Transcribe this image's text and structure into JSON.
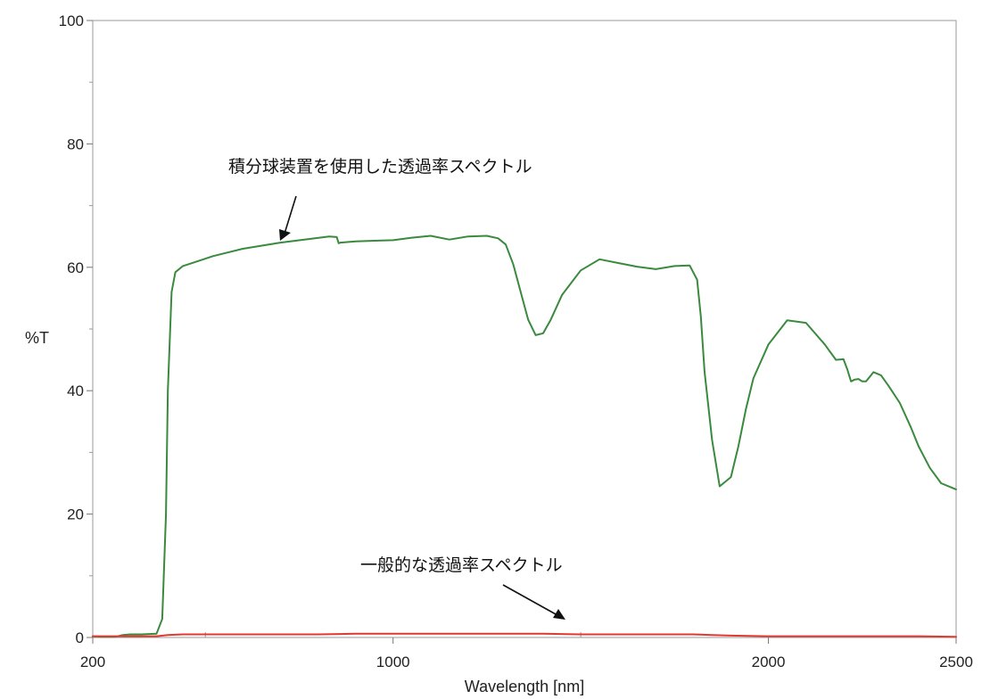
{
  "chart_data": {
    "type": "line",
    "title": "",
    "xlabel": "Wavelength [nm]",
    "ylabel": "%T",
    "xlim": [
      200,
      2500
    ],
    "ylim": [
      0,
      100
    ],
    "x_ticks": [
      200,
      1000,
      2000,
      2500
    ],
    "x_minor_ticks": [
      500,
      1500
    ],
    "y_ticks": [
      0,
      20,
      40,
      60,
      80,
      100
    ],
    "y_minor_ticks": [
      10,
      30,
      50,
      70,
      90
    ],
    "grid": false,
    "series": [
      {
        "color": "#3a8a3e",
        "x": [
          200,
          220,
          260,
          280,
          300,
          330,
          370,
          385,
          395,
          400,
          410,
          420,
          440,
          480,
          520,
          600,
          700,
          830,
          850,
          855,
          860,
          900,
          950,
          1000,
          1050,
          1100,
          1150,
          1200,
          1250,
          1280,
          1300,
          1320,
          1340,
          1360,
          1380,
          1400,
          1420,
          1450,
          1500,
          1550,
          1600,
          1650,
          1700,
          1750,
          1790,
          1810,
          1820,
          1830,
          1850,
          1870,
          1900,
          1920,
          1940,
          1960,
          2000,
          2050,
          2100,
          2150,
          2180,
          2200,
          2210,
          2220,
          2230,
          2240,
          2250,
          2260,
          2280,
          2300,
          2320,
          2350,
          2380,
          2400,
          2430,
          2460,
          2500
        ],
        "y": [
          0.2,
          0.1,
          0.1,
          0.4,
          0.5,
          0.5,
          0.6,
          3,
          20,
          40,
          56,
          59.2,
          60.2,
          61.0,
          61.8,
          63.0,
          64.0,
          65.0,
          64.9,
          63.9,
          64.0,
          64.2,
          64.3,
          64.4,
          64.8,
          65.1,
          64.5,
          65.0,
          65.1,
          64.7,
          63.7,
          60.5,
          56,
          51.5,
          49.0,
          49.3,
          51.5,
          55.5,
          59.5,
          61.3,
          60.7,
          60.1,
          59.7,
          60.2,
          60.3,
          58,
          52,
          43,
          32,
          24.5,
          26,
          31,
          37,
          42,
          47.5,
          51.4,
          51.0,
          47.5,
          45.0,
          45.1,
          43.5,
          41.5,
          41.8,
          41.9,
          41.5,
          41.5,
          43.0,
          42.5,
          40.8,
          38,
          34,
          31,
          27.5,
          25,
          24
        ]
      },
      {
        "color": "#e03a2f",
        "x": [
          200,
          300,
          370,
          400,
          440,
          500,
          600,
          700,
          800,
          900,
          1000,
          1100,
          1200,
          1300,
          1400,
          1500,
          1600,
          1700,
          1800,
          1850,
          1900,
          2000,
          2100,
          2200,
          2300,
          2400,
          2500
        ],
        "y": [
          0.2,
          0.2,
          0.2,
          0.4,
          0.5,
          0.5,
          0.5,
          0.5,
          0.5,
          0.6,
          0.6,
          0.6,
          0.6,
          0.6,
          0.6,
          0.5,
          0.5,
          0.5,
          0.5,
          0.4,
          0.3,
          0.2,
          0.2,
          0.2,
          0.2,
          0.2,
          0.1
        ]
      }
    ],
    "annotations": [
      {
        "text": "積分球装置を使用した透過率スペクトル",
        "series": 0
      },
      {
        "text": "一般的な透過率スペクトル",
        "series": 1
      }
    ]
  }
}
